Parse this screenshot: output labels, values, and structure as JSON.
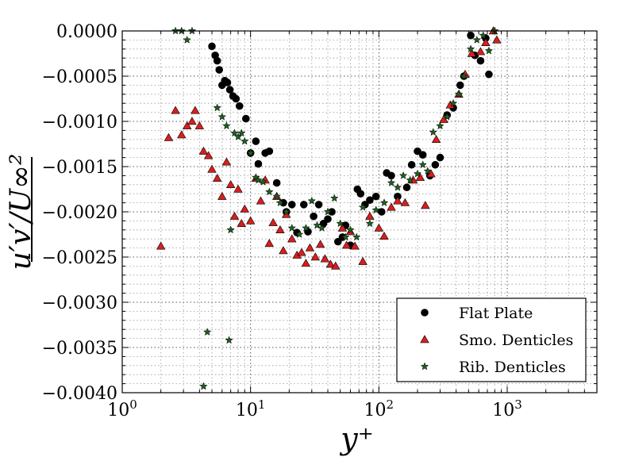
{
  "chart_data": {
    "type": "scatter",
    "x_scale": "log",
    "xlim": [
      1,
      5000
    ],
    "ylim": [
      -0.004,
      0.0
    ],
    "grid": true,
    "legend_position": "lower-right",
    "xlabel": "y⁺",
    "ylabel": "u′v′/U∞²",
    "x_ticks": [
      {
        "value": 1,
        "base": "10",
        "exp": "0"
      },
      {
        "value": 10,
        "base": "10",
        "exp": "1"
      },
      {
        "value": 100,
        "base": "10",
        "exp": "2"
      },
      {
        "value": 1000,
        "base": "10",
        "exp": "3"
      }
    ],
    "y_ticks": [
      {
        "value": 0.0,
        "label": "0.0000"
      },
      {
        "value": -0.0005,
        "label": "−0.0005"
      },
      {
        "value": -0.001,
        "label": "−0.0010"
      },
      {
        "value": -0.0015,
        "label": "−0.0015"
      },
      {
        "value": -0.002,
        "label": "−0.0020"
      },
      {
        "value": -0.0025,
        "label": "−0.0025"
      },
      {
        "value": -0.003,
        "label": "−0.0030"
      },
      {
        "value": -0.0035,
        "label": "−0.0035"
      },
      {
        "value": -0.004,
        "label": "−0.0040"
      }
    ],
    "series": [
      {
        "name": "Flat Plate",
        "marker": "circle",
        "color": "#000000",
        "points": [
          [
            5.0,
            -0.00017
          ],
          [
            5.3,
            -0.00027
          ],
          [
            5.5,
            -0.00033
          ],
          [
            5.7,
            -0.00043
          ],
          [
            6.0,
            -0.0006
          ],
          [
            6.3,
            -0.00055
          ],
          [
            6.6,
            -0.00057
          ],
          [
            6.9,
            -0.00065
          ],
          [
            7.3,
            -0.00072
          ],
          [
            7.7,
            -0.00075
          ],
          [
            8.2,
            -0.00083
          ],
          [
            9.2,
            -0.00097
          ],
          [
            10.0,
            -0.00135
          ],
          [
            11.0,
            -0.00122
          ],
          [
            11.5,
            -0.00147
          ],
          [
            13.0,
            -0.00135
          ],
          [
            14.0,
            -0.00133
          ],
          [
            16.0,
            -0.00168
          ],
          [
            18.0,
            -0.0019
          ],
          [
            19.0,
            -0.002
          ],
          [
            21.0,
            -0.00192
          ],
          [
            23.0,
            -0.00223
          ],
          [
            26.0,
            -0.00192
          ],
          [
            28.0,
            -0.00222
          ],
          [
            31.0,
            -0.00205
          ],
          [
            34.0,
            -0.00192
          ],
          [
            37.0,
            -0.00213
          ],
          [
            40.0,
            -0.00208
          ],
          [
            43.0,
            -0.002
          ],
          [
            48.0,
            -0.00233
          ],
          [
            52.0,
            -0.00228
          ],
          [
            55.0,
            -0.00215
          ],
          [
            60.0,
            -0.00237
          ],
          [
            68.0,
            -0.00175
          ],
          [
            72.0,
            -0.0018
          ],
          [
            78.0,
            -0.00192
          ],
          [
            85.0,
            -0.00187
          ],
          [
            95.0,
            -0.00183
          ],
          [
            105.0,
            -0.002
          ],
          [
            115.0,
            -0.00157
          ],
          [
            125.0,
            -0.0016
          ],
          [
            140.0,
            -0.00183
          ],
          [
            165.0,
            -0.00173
          ],
          [
            180.0,
            -0.00148
          ],
          [
            200.0,
            -0.00133
          ],
          [
            220.0,
            -0.00137
          ],
          [
            250.0,
            -0.0016
          ],
          [
            275.0,
            -0.00148
          ],
          [
            300.0,
            -0.0014
          ],
          [
            340.0,
            -0.00093
          ],
          [
            380.0,
            -0.00085
          ],
          [
            430.0,
            -0.0006
          ],
          [
            460.0,
            -0.0005
          ],
          [
            520.0,
            -5e-05
          ],
          [
            560.0,
            -0.00027
          ],
          [
            620.0,
            -0.00033
          ],
          [
            680.0,
            -8e-05
          ],
          [
            720.0,
            -0.00048
          ]
        ]
      },
      {
        "name": "Smo. Denticles",
        "marker": "triangle",
        "color": "#d81e1e",
        "points": [
          [
            2.0,
            -0.00238
          ],
          [
            2.3,
            -0.00118
          ],
          [
            2.6,
            -0.00088
          ],
          [
            2.9,
            -0.00115
          ],
          [
            3.2,
            -0.00105
          ],
          [
            3.5,
            -0.001
          ],
          [
            3.7,
            -0.00088
          ],
          [
            4.0,
            -0.00105
          ],
          [
            4.3,
            -0.00133
          ],
          [
            4.7,
            -0.00138
          ],
          [
            5.0,
            -0.00153
          ],
          [
            5.5,
            -0.00163
          ],
          [
            6.0,
            -0.00183
          ],
          [
            6.5,
            -0.00145
          ],
          [
            7.0,
            -0.0017
          ],
          [
            7.5,
            -0.00205
          ],
          [
            8.0,
            -0.00175
          ],
          [
            8.5,
            -0.00213
          ],
          [
            9.0,
            -0.00197
          ],
          [
            10.0,
            -0.0021
          ],
          [
            11.0,
            -0.00163
          ],
          [
            12.0,
            -0.00188
          ],
          [
            13.0,
            -0.00165
          ],
          [
            14.0,
            -0.00235
          ],
          [
            15.0,
            -0.00212
          ],
          [
            16.0,
            -0.00183
          ],
          [
            17.0,
            -0.0022
          ],
          [
            18.0,
            -0.00243
          ],
          [
            19.0,
            -0.00203
          ],
          [
            21.0,
            -0.0023
          ],
          [
            23.0,
            -0.00248
          ],
          [
            25.0,
            -0.00245
          ],
          [
            27.0,
            -0.00257
          ],
          [
            29.0,
            -0.0024
          ],
          [
            32.0,
            -0.0025
          ],
          [
            35.0,
            -0.00236
          ],
          [
            38.0,
            -0.00252
          ],
          [
            42.0,
            -0.00258
          ],
          [
            46.0,
            -0.0026
          ],
          [
            52.0,
            -0.00218
          ],
          [
            56.0,
            -0.00237
          ],
          [
            60.0,
            -0.00222
          ],
          [
            65.0,
            -0.00238
          ],
          [
            75.0,
            -0.00255
          ],
          [
            85.0,
            -0.00205
          ],
          [
            100.0,
            -0.00218
          ],
          [
            110.0,
            -0.00227
          ],
          [
            125.0,
            -0.00195
          ],
          [
            140.0,
            -0.00188
          ],
          [
            160.0,
            -0.0019
          ],
          [
            185.0,
            -0.00165
          ],
          [
            210.0,
            -0.00162
          ],
          [
            230.0,
            -0.00193
          ],
          [
            255.0,
            -0.00158
          ],
          [
            280.0,
            -0.0012
          ],
          [
            320.0,
            -0.00098
          ],
          [
            360.0,
            -0.00082
          ],
          [
            420.0,
            -0.0007
          ],
          [
            470.0,
            -0.00048
          ],
          [
            530.0,
            -0.00025
          ],
          [
            620.0,
            -0.00023
          ],
          [
            680.0,
            -0.00013
          ],
          [
            780.0,
            -0.0
          ],
          [
            830.0,
            -0.0001
          ]
        ]
      },
      {
        "name": "Rib. Denticles",
        "marker": "star",
        "color": "#1f5e1f",
        "points": [
          [
            2.6,
            0.0
          ],
          [
            2.9,
            0.0
          ],
          [
            3.2,
            -0.0001
          ],
          [
            3.5,
            0.0
          ],
          [
            4.3,
            -0.00393
          ],
          [
            4.6,
            -0.00333
          ],
          [
            5.5,
            -0.00085
          ],
          [
            6.0,
            -0.00095
          ],
          [
            6.5,
            -0.00105
          ],
          [
            6.8,
            -0.00342
          ],
          [
            7.0,
            -0.0022
          ],
          [
            7.5,
            -0.00113
          ],
          [
            8.0,
            -0.00117
          ],
          [
            8.5,
            -0.00113
          ],
          [
            9.0,
            -0.00122
          ],
          [
            10.0,
            -0.00135
          ],
          [
            11.0,
            -0.00162
          ],
          [
            11.5,
            -0.00165
          ],
          [
            12.5,
            -0.00167
          ],
          [
            14.0,
            -0.00178
          ],
          [
            16.0,
            -0.00183
          ],
          [
            17.0,
            -0.0019
          ],
          [
            19.0,
            -0.002
          ],
          [
            21.0,
            -0.00218
          ],
          [
            24.0,
            -0.00225
          ],
          [
            27.0,
            -0.00218
          ],
          [
            30.0,
            -0.00188
          ],
          [
            33.0,
            -0.00215
          ],
          [
            36.0,
            -0.00218
          ],
          [
            40.0,
            -0.002
          ],
          [
            45.0,
            -0.00185
          ],
          [
            50.0,
            -0.00213
          ],
          [
            55.0,
            -0.00228
          ],
          [
            60.0,
            -0.0022
          ],
          [
            67.0,
            -0.00228
          ],
          [
            75.0,
            -0.00195
          ],
          [
            85.0,
            -0.00213
          ],
          [
            95.0,
            -0.00198
          ],
          [
            110.0,
            -0.0019
          ],
          [
            125.0,
            -0.00168
          ],
          [
            140.0,
            -0.00173
          ],
          [
            155.0,
            -0.0016
          ],
          [
            175.0,
            -0.00165
          ],
          [
            200.0,
            -0.00158
          ],
          [
            220.0,
            -0.00148
          ],
          [
            240.0,
            -0.00155
          ],
          [
            265.0,
            -0.00112
          ],
          [
            300.0,
            -0.00105
          ],
          [
            340.0,
            -0.00095
          ],
          [
            380.0,
            -0.0008
          ],
          [
            420.0,
            -0.0007
          ],
          [
            460.0,
            -0.0005
          ],
          [
            520.0,
            -0.0002
          ],
          [
            580.0,
            -0.0001
          ],
          [
            650.0,
            -5e-05
          ],
          [
            720.0,
            -0.00022
          ],
          [
            800.0,
            0.0
          ]
        ]
      }
    ]
  }
}
